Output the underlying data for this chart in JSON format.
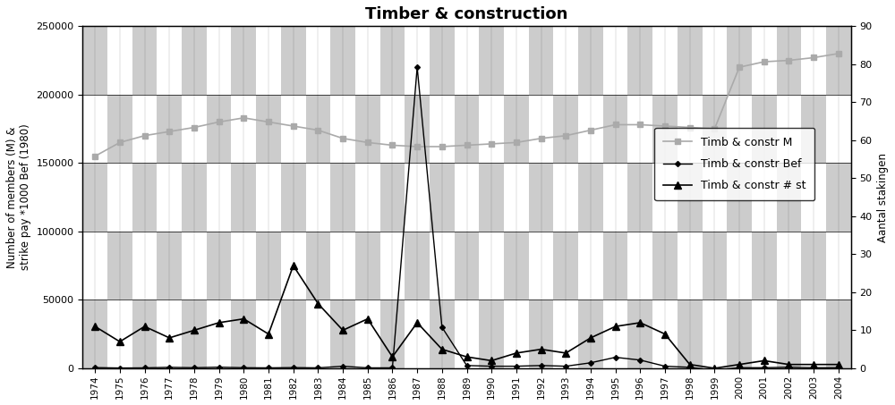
{
  "title": "Timber & construction",
  "years": [
    1974,
    1975,
    1976,
    1977,
    1978,
    1979,
    1980,
    1981,
    1982,
    1983,
    1984,
    1985,
    1986,
    1987,
    1988,
    1989,
    1990,
    1991,
    1992,
    1993,
    1994,
    1995,
    1996,
    1997,
    1998,
    1999,
    2000,
    2001,
    2002,
    2003,
    2004
  ],
  "members": [
    155000,
    165000,
    170000,
    173000,
    176000,
    180000,
    183000,
    180000,
    177000,
    174000,
    168000,
    165000,
    163000,
    162000,
    162000,
    163000,
    164000,
    165000,
    168000,
    170000,
    174000,
    178000,
    178000,
    177000,
    176000,
    175000,
    220000,
    224000,
    225000,
    227000,
    230000
  ],
  "bef": [
    500,
    200,
    300,
    700,
    400,
    800,
    400,
    300,
    500,
    300,
    1500,
    300,
    300,
    220000,
    30000,
    2000,
    1500,
    1500,
    2000,
    1500,
    4000,
    8000,
    6000,
    1500,
    700,
    -1500,
    400,
    400,
    800,
    400,
    400
  ],
  "num_strikes": [
    11,
    7,
    11,
    8,
    10,
    12,
    13,
    9,
    27,
    17,
    10,
    13,
    3,
    12,
    5,
    3,
    2,
    4,
    5,
    4,
    8,
    11,
    12,
    9,
    1,
    0,
    1,
    2,
    1,
    1,
    1
  ],
  "ylabel_left": "Number of members (M) &\nstrike pay *1000 Bef (1980)",
  "ylabel_right": "Aantal stakingen",
  "ylim_left": [
    0,
    250000
  ],
  "ylim_right": [
    0,
    90
  ],
  "yticks_left": [
    0,
    50000,
    100000,
    150000,
    200000,
    250000
  ],
  "yticks_right": [
    0,
    10,
    20,
    30,
    40,
    50,
    60,
    70,
    80,
    90
  ],
  "legend_labels": [
    "Timb & constr M",
    "Timb & constr Bef",
    "Timb & constr # st"
  ],
  "color_M": "#aaaaaa",
  "color_Bef": "#000000",
  "color_st": "#000000",
  "checker_gray": "#cccccc",
  "checker_white": "#ffffff"
}
